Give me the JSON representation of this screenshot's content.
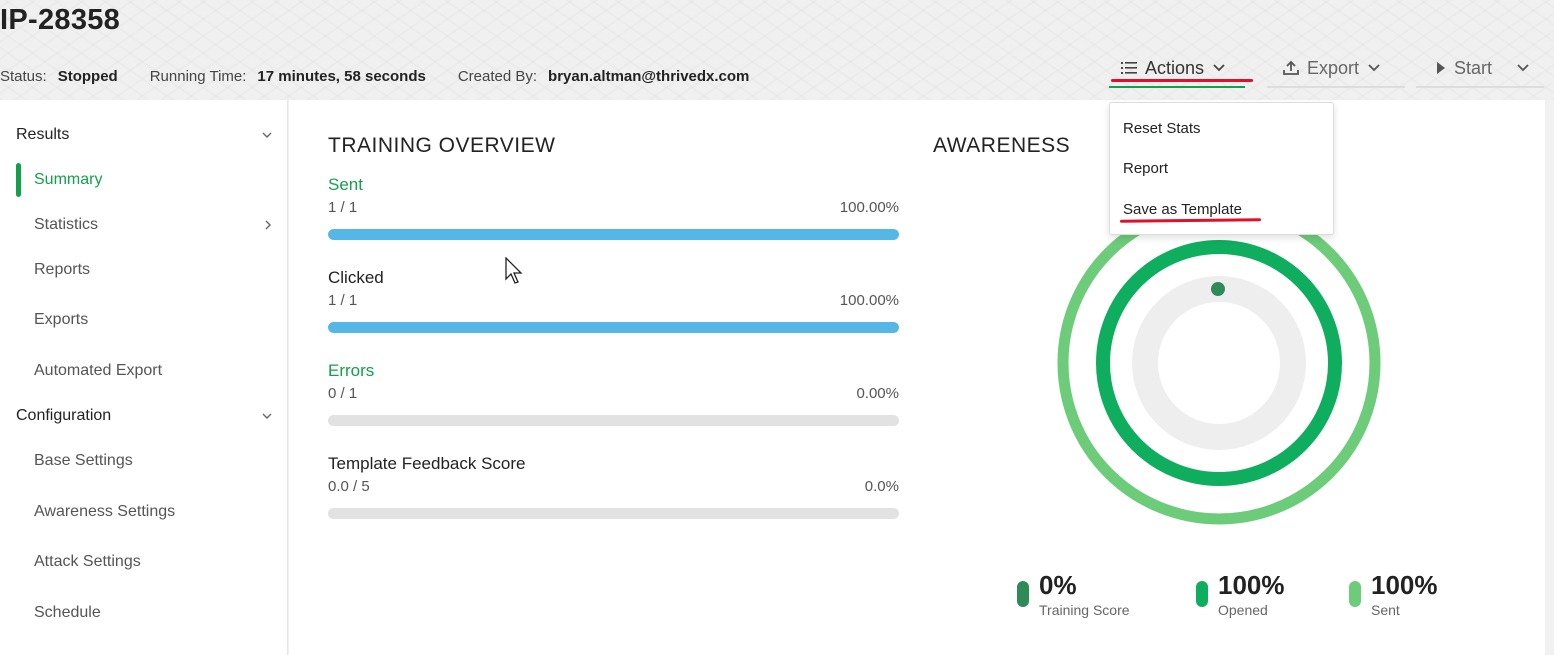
{
  "header": {
    "title": "IP-28358",
    "status_label": "Status:",
    "status_value": "Stopped",
    "running_label": "Running Time:",
    "running_value": "17 minutes, 58 seconds",
    "created_label": "Created By:",
    "created_value": "bryan.altman@thrivedx.com",
    "buttons": {
      "actions": "Actions",
      "export": "Export",
      "start": "Start"
    }
  },
  "actions_menu": {
    "items": [
      "Reset Stats",
      "Report",
      "Save as Template"
    ]
  },
  "sidebar": {
    "sections": [
      {
        "label": "Results",
        "items": [
          "Summary",
          "Statistics",
          "Reports",
          "Exports",
          "Automated Export"
        ]
      },
      {
        "label": "Configuration",
        "items": [
          "Base Settings",
          "Awareness Settings",
          "Attack Settings",
          "Schedule"
        ]
      }
    ],
    "active_item": "Summary"
  },
  "training_overview": {
    "title": "TRAINING OVERVIEW",
    "metrics": [
      {
        "label": "Sent",
        "ratio": "1 / 1",
        "percent": "100.00%",
        "fill": 1.0
      },
      {
        "label": "Clicked",
        "ratio": "1 / 1",
        "percent": "100.00%",
        "fill": 1.0
      },
      {
        "label": "Errors",
        "ratio": "0 / 1",
        "percent": "0.00%",
        "fill": 0.0
      },
      {
        "label": "Template Feedback Score",
        "ratio": "0.0 / 5",
        "percent": "0.0%",
        "fill": 0.0
      }
    ]
  },
  "awareness": {
    "title": "AWARENESS",
    "legend": [
      {
        "value": "0%",
        "label": "Training Score",
        "color": "#2e8b57",
        "level": 0.0
      },
      {
        "value": "100%",
        "label": "Opened",
        "color": "#0fae5e",
        "level": 1.0
      },
      {
        "value": "100%",
        "label": "Sent",
        "color": "#6ccc7a",
        "level": 1.0
      }
    ]
  },
  "colors": {
    "accent": "#13a04c",
    "progress": "#55b7e6",
    "highlight": "#e0102a"
  }
}
